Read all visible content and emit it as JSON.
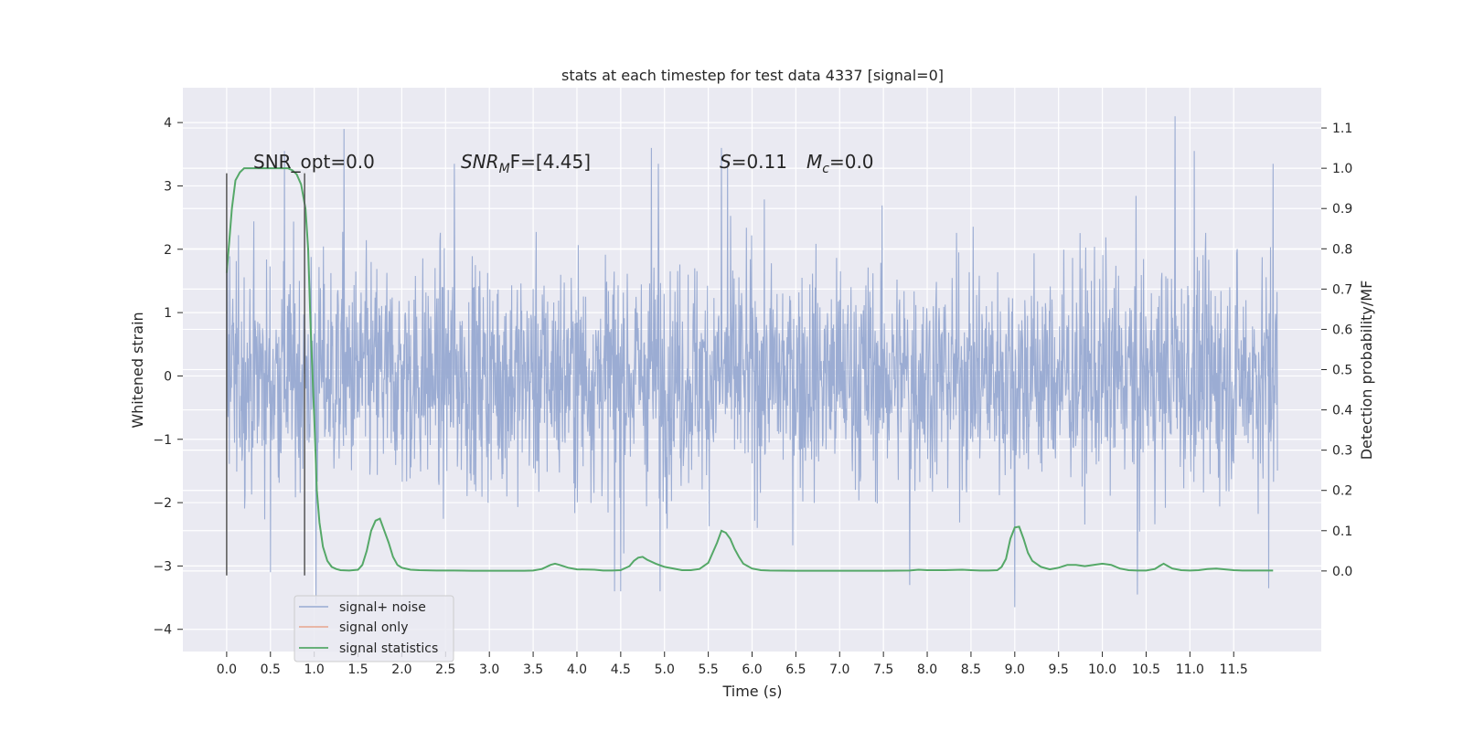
{
  "chart_data": {
    "type": "line",
    "title": "stats at each timestep for test data 4337 [signal=0]",
    "xlabel": "Time (s)",
    "ylabel_left": "Whitened strain",
    "ylabel_right": "Detection probability/MF",
    "xlim": [
      -0.5,
      12.5
    ],
    "ylim_left": [
      -4.35,
      4.55
    ],
    "ylim_right": [
      -0.2,
      1.2
    ],
    "x_ticks": [
      0.0,
      0.5,
      1.0,
      1.5,
      2.0,
      2.5,
      3.0,
      3.5,
      4.0,
      4.5,
      5.0,
      5.5,
      6.0,
      6.5,
      7.0,
      7.5,
      8.0,
      8.5,
      9.0,
      9.5,
      10.0,
      10.5,
      11.0,
      11.5
    ],
    "x_tick_labels": [
      "0.0",
      "0.5",
      "1.0",
      "1.5",
      "2.0",
      "2.5",
      "3.0",
      "3.5",
      "4.0",
      "4.5",
      "5.0",
      "5.5",
      "6.0",
      "6.5",
      "7.0",
      "7.5",
      "8.0",
      "8.5",
      "9.0",
      "9.5",
      "10.0",
      "10.5",
      "11.0",
      "11.5"
    ],
    "y_left_ticks": [
      -4,
      -3,
      -2,
      -1,
      0,
      1,
      2,
      3,
      4
    ],
    "y_left_tick_labels": [
      "−4",
      "−3",
      "−2",
      "−1",
      "0",
      "1",
      "2",
      "3",
      "4"
    ],
    "y_right_ticks": [
      0.0,
      0.1,
      0.2,
      0.3,
      0.4,
      0.5,
      0.6,
      0.7,
      0.8,
      0.9,
      1.0,
      1.1
    ],
    "y_right_tick_labels": [
      "0.0",
      "0.1",
      "0.2",
      "0.3",
      "0.4",
      "0.5",
      "0.6",
      "0.7",
      "0.8",
      "0.9",
      "1.0",
      "1.1"
    ],
    "grid": true,
    "legend_position": "lower-left",
    "series": [
      {
        "name": "signal+ noise",
        "color": "#97a9d1",
        "axis": "left",
        "description_x_range": [
          0.0,
          12.0
        ],
        "approx_envelope": [
          -2.5,
          2.5
        ],
        "peaks": [
          {
            "x": 0.66,
            "y": 3.55
          },
          {
            "x": 1.34,
            "y": 3.9
          },
          {
            "x": 2.6,
            "y": 3.35
          },
          {
            "x": 4.85,
            "y": 3.6
          },
          {
            "x": 4.93,
            "y": 3.35
          },
          {
            "x": 5.65,
            "y": 3.6
          },
          {
            "x": 5.72,
            "y": 3.35
          },
          {
            "x": 10.83,
            "y": 4.1
          },
          {
            "x": 11.05,
            "y": 3.55
          },
          {
            "x": 11.95,
            "y": 3.35
          }
        ],
        "troughs": [
          {
            "x": 1.02,
            "y": -3.6
          },
          {
            "x": 0.5,
            "y": -3.1
          },
          {
            "x": 4.43,
            "y": -3.4
          },
          {
            "x": 4.5,
            "y": -3.4
          },
          {
            "x": 4.95,
            "y": -3.4
          },
          {
            "x": 7.8,
            "y": -3.3
          },
          {
            "x": 9.0,
            "y": -3.65
          },
          {
            "x": 10.4,
            "y": -3.45
          },
          {
            "x": 11.9,
            "y": -3.35
          }
        ]
      },
      {
        "name": "signal only",
        "color": "#e8a58c",
        "axis": "left",
        "x": [],
        "y": []
      },
      {
        "name": "signal statistics",
        "color": "#55a868",
        "axis": "right",
        "x": [
          0.0,
          0.03,
          0.06,
          0.1,
          0.15,
          0.2,
          0.3,
          0.4,
          0.5,
          0.6,
          0.7,
          0.75,
          0.8,
          0.85,
          0.9,
          0.93,
          0.96,
          1.0,
          1.03,
          1.06,
          1.1,
          1.15,
          1.2,
          1.25,
          1.3,
          1.4,
          1.5,
          1.55,
          1.6,
          1.65,
          1.7,
          1.75,
          1.8,
          1.85,
          1.9,
          1.95,
          2.0,
          2.1,
          2.2,
          2.4,
          2.6,
          2.8,
          3.0,
          3.2,
          3.4,
          3.5,
          3.6,
          3.7,
          3.75,
          3.8,
          3.9,
          4.0,
          4.2,
          4.3,
          4.4,
          4.5,
          4.6,
          4.65,
          4.7,
          4.75,
          4.8,
          4.9,
          5.0,
          5.2,
          5.3,
          5.4,
          5.5,
          5.55,
          5.6,
          5.65,
          5.7,
          5.75,
          5.8,
          5.85,
          5.9,
          6.0,
          6.1,
          6.2,
          6.5,
          7.0,
          7.5,
          7.8,
          7.9,
          8.0,
          8.2,
          8.4,
          8.5,
          8.6,
          8.7,
          8.8,
          8.85,
          8.9,
          8.95,
          9.0,
          9.05,
          9.1,
          9.15,
          9.2,
          9.3,
          9.4,
          9.5,
          9.6,
          9.7,
          9.8,
          9.9,
          10.0,
          10.1,
          10.2,
          10.3,
          10.4,
          10.5,
          10.6,
          10.65,
          10.7,
          10.75,
          10.8,
          10.9,
          11.0,
          11.1,
          11.2,
          11.3,
          11.4,
          11.5,
          11.6,
          11.7,
          11.8,
          11.9,
          11.95
        ],
        "y": [
          0.74,
          0.82,
          0.9,
          0.97,
          0.99,
          1.0,
          1.0,
          1.0,
          1.0,
          1.0,
          1.0,
          0.995,
          0.985,
          0.96,
          0.9,
          0.8,
          0.6,
          0.38,
          0.2,
          0.12,
          0.06,
          0.025,
          0.01,
          0.005,
          0.002,
          0.001,
          0.003,
          0.015,
          0.05,
          0.1,
          0.125,
          0.13,
          0.1,
          0.07,
          0.035,
          0.015,
          0.008,
          0.003,
          0.002,
          0.001,
          0.001,
          0.0005,
          0.0005,
          0.0005,
          0.0005,
          0.001,
          0.005,
          0.015,
          0.018,
          0.015,
          0.008,
          0.004,
          0.003,
          0.001,
          0.001,
          0.002,
          0.012,
          0.025,
          0.033,
          0.035,
          0.028,
          0.018,
          0.01,
          0.002,
          0.002,
          0.005,
          0.02,
          0.045,
          0.07,
          0.1,
          0.095,
          0.08,
          0.055,
          0.035,
          0.018,
          0.006,
          0.002,
          0.001,
          0.0005,
          0.0005,
          0.0005,
          0.001,
          0.003,
          0.002,
          0.002,
          0.003,
          0.002,
          0.001,
          0.001,
          0.002,
          0.01,
          0.03,
          0.08,
          0.108,
          0.11,
          0.08,
          0.045,
          0.025,
          0.01,
          0.004,
          0.008,
          0.015,
          0.015,
          0.012,
          0.015,
          0.018,
          0.015,
          0.006,
          0.002,
          0.001,
          0.001,
          0.005,
          0.012,
          0.018,
          0.012,
          0.006,
          0.002,
          0.001,
          0.002,
          0.005,
          0.006,
          0.004,
          0.002,
          0.001,
          0.001,
          0.001,
          0.001,
          0.001
        ]
      }
    ],
    "vertical_lines": [
      {
        "x": 0.0,
        "y_range": [
          -3.15,
          3.2
        ],
        "color": "#555555"
      },
      {
        "x": 0.89,
        "y_range": [
          -3.15,
          3.2
        ],
        "color": "#555555"
      }
    ],
    "annotations": [
      {
        "text": "SNR_opt=0.0",
        "x": 0.2,
        "y": 3.3
      },
      {
        "text_main": "SNR",
        "text_sub": "M",
        "text_rest": "F=[4.45]",
        "x": 2.6,
        "y": 3.3
      },
      {
        "text_main": "S",
        "text_rest": "=0.11",
        "x": 5.6,
        "y": 3.3
      },
      {
        "text_main": "M",
        "text_sub": "c",
        "text_rest": "=0.0",
        "x": 6.6,
        "y": 3.3
      }
    ]
  }
}
